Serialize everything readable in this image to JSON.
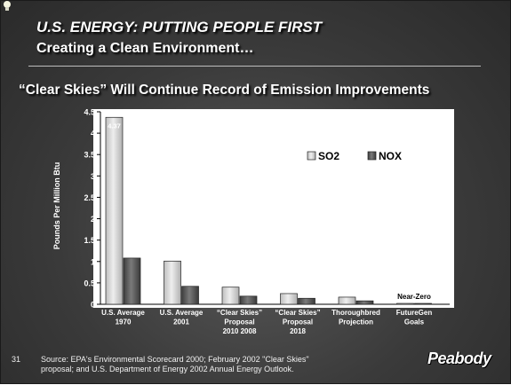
{
  "header": {
    "title": "U.S. ENERGY: PUTTING PEOPLE FIRST",
    "subtitle": "Creating a Clean Environment…",
    "chart_heading": "“Clear Skies” Will Continue Record of Emission Improvements"
  },
  "footer": {
    "page_number": "31",
    "source": "Source:  EPA's  Environmental Scorecard 2000; February 2002 \"Clear Skies\"\n            proposal; and U.S. Department of Energy 2002 Annual Energy Outlook.",
    "logo": "Peabody"
  },
  "colors": {
    "background": "#3e3e3e",
    "so2_bar": "#d4d4d4",
    "nox_bar": "#5e5e5e"
  },
  "chart_data": {
    "type": "bar",
    "ylabel": "Pounds Per Million Btu",
    "ylim": [
      0,
      4.5
    ],
    "y_ticks": [
      "0",
      "0.5",
      "1",
      "1.5",
      "2",
      "2.5",
      "3",
      "3.5",
      "4",
      "4.5"
    ],
    "legend_position": "top-right",
    "grid": false,
    "categories": [
      [
        "U.S. Average",
        "1970"
      ],
      [
        "U.S. Average",
        "2001"
      ],
      [
        "“Clear Skies”",
        "Proposal",
        "2010      2008"
      ],
      [
        "“Clear Skies”",
        "Proposal",
        "2018"
      ],
      [
        "Thoroughbred",
        "Projection"
      ],
      [
        "FutureGen",
        "Goals"
      ]
    ],
    "series": [
      {
        "name": "SO2",
        "values": [
          4.37,
          1.01,
          0.4,
          0.25,
          0.167,
          0.01
        ],
        "labels": [
          "4.37",
          "1.01",
          "0.40",
          "0.25",
          "0.167",
          ""
        ]
      },
      {
        "name": "NOX",
        "values": [
          1.08,
          0.42,
          0.19,
          0.14,
          0.08,
          0.01
        ],
        "labels": [
          "1.08",
          "0.42",
          "0.19",
          "0.14",
          "0.08",
          ""
        ]
      }
    ],
    "annotations": [
      {
        "category_index": 5,
        "text": "Near-Zero"
      }
    ]
  }
}
